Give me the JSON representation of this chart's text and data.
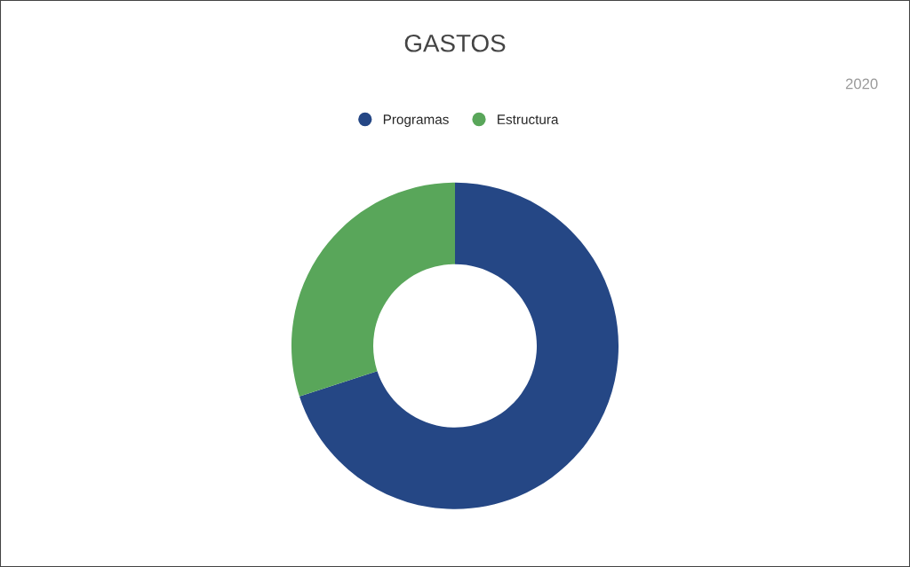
{
  "chart_data": {
    "type": "donut",
    "title": "GASTOS",
    "annotations": [
      "2020"
    ],
    "categories": [
      "Programas",
      "Estructura"
    ],
    "values": [
      70,
      30
    ],
    "colors": [
      "#254785",
      "#59a65a"
    ],
    "legend": "top"
  }
}
